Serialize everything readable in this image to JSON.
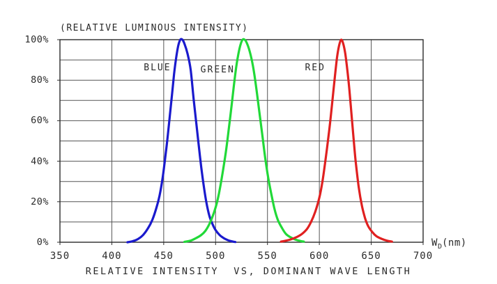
{
  "title": "(RELATIVE LUMINOUS INTENSITY)",
  "caption": "RELATIVE INTENSITY  VS, DOMINANT WAVE LENGTH",
  "x_axis_unit": {
    "prefix": "W",
    "sub": "D",
    "suffix": "(nm)"
  },
  "colors": {
    "grid": "#555555",
    "frame": "#2b2b2b",
    "text": "#2a2a2a",
    "blue_curve": "#1a1acd",
    "green_curve": "#21d938",
    "red_curve": "#e02020"
  },
  "chart_data": {
    "type": "line",
    "title": "(RELATIVE LUMINOUS INTENSITY)",
    "xlabel": "WD(nm)",
    "ylabel": "RELATIVE INTENSITY",
    "xlim": [
      350,
      700
    ],
    "ylim": [
      0,
      100
    ],
    "grid": true,
    "x_gridline_step": 50,
    "y_gridline_step": 10,
    "x_ticks": [
      350,
      400,
      450,
      500,
      550,
      600,
      650,
      700
    ],
    "x_tick_labels": [
      "350",
      "400",
      "450",
      "500",
      "550",
      "600",
      "650",
      "700"
    ],
    "y_ticks": [
      0,
      20,
      40,
      60,
      80,
      100
    ],
    "y_tick_labels": [
      "0%",
      "20%",
      "40%",
      "60%",
      "80%",
      "100%"
    ],
    "legend_position": "labels-inside-plot",
    "series": [
      {
        "name": "BLUE",
        "color": "#1a1acd",
        "peak_nm": 466,
        "peak_intensity_pct": 100,
        "label_pos": {
          "nm": 444,
          "pct": 86
        },
        "points": [
          [
            415,
            0
          ],
          [
            420,
            0.5
          ],
          [
            425,
            1.5
          ],
          [
            430,
            3.5
          ],
          [
            435,
            7
          ],
          [
            439,
            11
          ],
          [
            443,
            17
          ],
          [
            446,
            23
          ],
          [
            449,
            32
          ],
          [
            452,
            44
          ],
          [
            454,
            53
          ],
          [
            456,
            63
          ],
          [
            458,
            73
          ],
          [
            460,
            83
          ],
          [
            462,
            91
          ],
          [
            464,
            97
          ],
          [
            466,
            100
          ],
          [
            468,
            100
          ],
          [
            470,
            98
          ],
          [
            473,
            93
          ],
          [
            476,
            85
          ],
          [
            479,
            70
          ],
          [
            482,
            56
          ],
          [
            485,
            42
          ],
          [
            488,
            30
          ],
          [
            491,
            20
          ],
          [
            494,
            13
          ],
          [
            497,
            9
          ],
          [
            500,
            6
          ],
          [
            504,
            3.5
          ],
          [
            508,
            2
          ],
          [
            512,
            1
          ],
          [
            516,
            0.4
          ],
          [
            519,
            0.1
          ]
        ]
      },
      {
        "name": "GREEN",
        "color": "#21d938",
        "peak_nm": 527,
        "peak_intensity_pct": 100,
        "label_pos": {
          "nm": 502,
          "pct": 85
        },
        "points": [
          [
            470,
            0.2
          ],
          [
            476,
            0.8
          ],
          [
            481,
            2
          ],
          [
            486,
            3.5
          ],
          [
            490,
            5.5
          ],
          [
            494,
            9
          ],
          [
            498,
            14
          ],
          [
            501,
            19
          ],
          [
            504,
            26
          ],
          [
            507,
            35
          ],
          [
            510,
            45
          ],
          [
            513,
            57
          ],
          [
            516,
            70
          ],
          [
            518,
            79
          ],
          [
            520,
            87
          ],
          [
            522,
            93
          ],
          [
            524,
            97.5
          ],
          [
            526,
            100
          ],
          [
            528,
            100
          ],
          [
            530,
            98.5
          ],
          [
            533,
            94
          ],
          [
            536,
            87
          ],
          [
            539,
            77
          ],
          [
            542,
            65
          ],
          [
            545,
            53
          ],
          [
            548,
            41
          ],
          [
            551,
            31
          ],
          [
            554,
            23
          ],
          [
            557,
            16
          ],
          [
            560,
            11
          ],
          [
            564,
            7
          ],
          [
            568,
            4
          ],
          [
            572,
            2.5
          ],
          [
            577,
            1.3
          ],
          [
            582,
            0.6
          ],
          [
            585,
            0.3
          ]
        ]
      },
      {
        "name": "RED",
        "color": "#e02020",
        "peak_nm": 620,
        "peak_intensity_pct": 100,
        "label_pos": {
          "nm": 596,
          "pct": 86
        },
        "points": [
          [
            563,
            0.3
          ],
          [
            568,
            0.8
          ],
          [
            573,
            1.5
          ],
          [
            578,
            2.5
          ],
          [
            583,
            4
          ],
          [
            588,
            6.5
          ],
          [
            592,
            10
          ],
          [
            596,
            15
          ],
          [
            600,
            22
          ],
          [
            603,
            30
          ],
          [
            606,
            41
          ],
          [
            609,
            53
          ],
          [
            611,
            62
          ],
          [
            613,
            72
          ],
          [
            615,
            82
          ],
          [
            617,
            91
          ],
          [
            619,
            97
          ],
          [
            621,
            100
          ],
          [
            623,
            98
          ],
          [
            625,
            93
          ],
          [
            627,
            85
          ],
          [
            629,
            75
          ],
          [
            631,
            63
          ],
          [
            633,
            51
          ],
          [
            635,
            40
          ],
          [
            638,
            27
          ],
          [
            641,
            18
          ],
          [
            644,
            12
          ],
          [
            647,
            8
          ],
          [
            651,
            5
          ],
          [
            655,
            3
          ],
          [
            660,
            1.7
          ],
          [
            665,
            0.8
          ],
          [
            670,
            0.3
          ]
        ]
      }
    ]
  }
}
